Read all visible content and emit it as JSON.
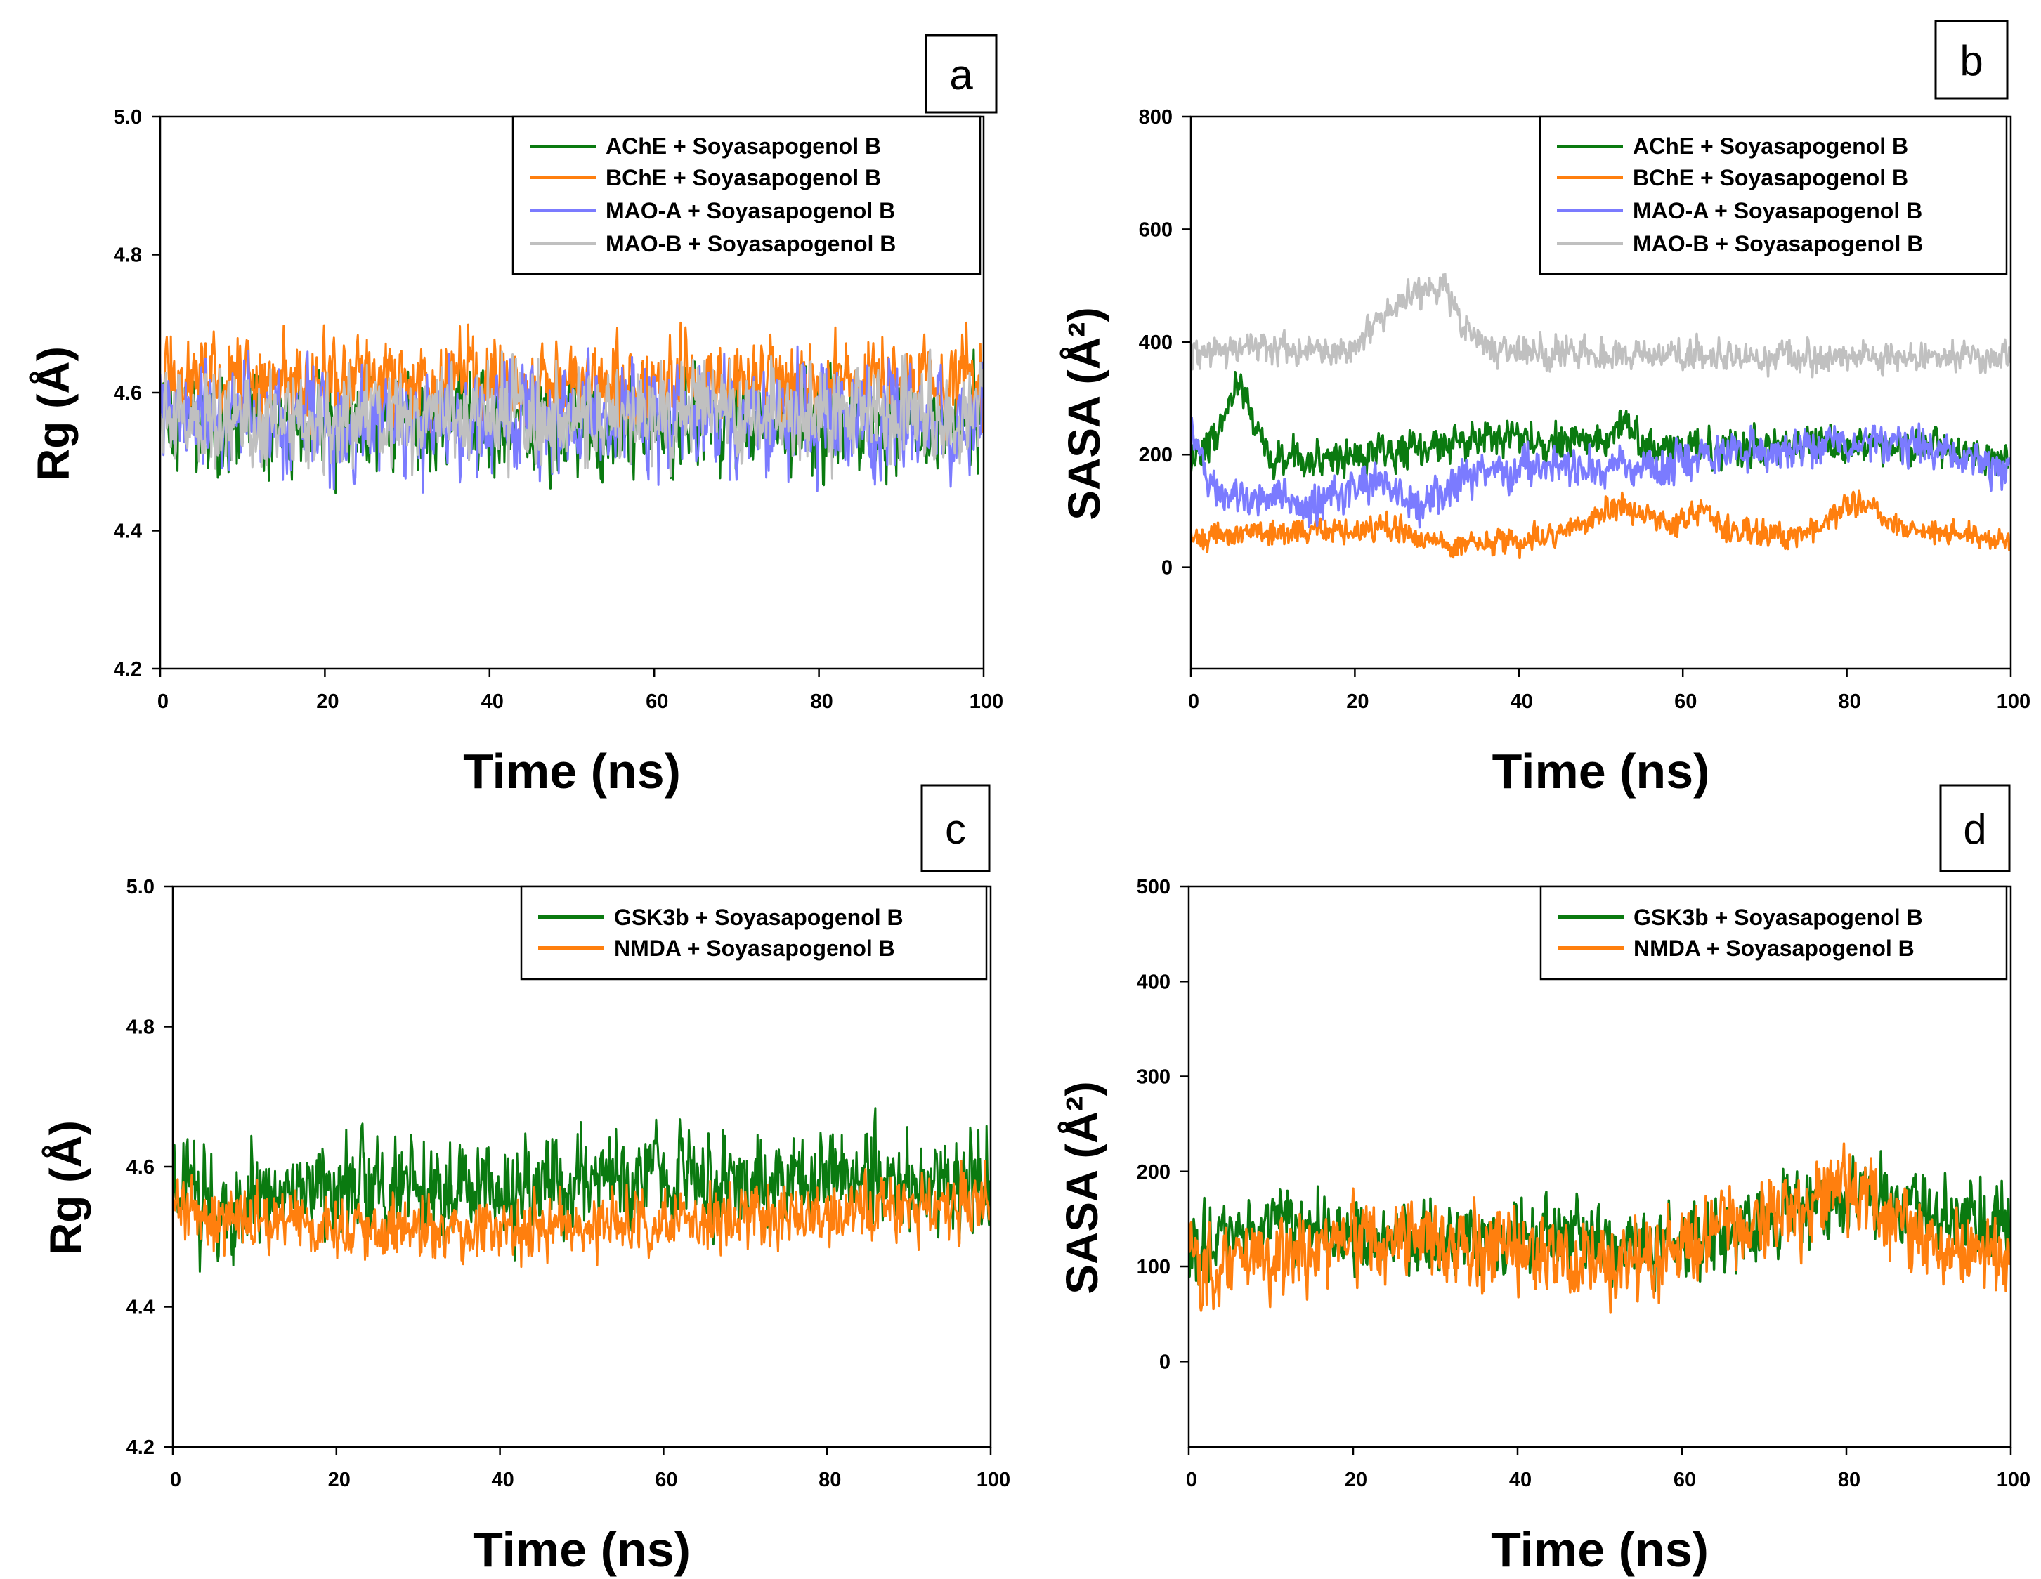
{
  "chart_data": [
    {
      "id": "a",
      "type": "line",
      "panel_label": "a",
      "xlabel": "Time (ns)",
      "ylabel": "Rg (Å)",
      "xlim": [
        0,
        100
      ],
      "ylim": [
        4.2,
        5.0
      ],
      "xticks": [
        0,
        20,
        40,
        60,
        80,
        100
      ],
      "yticks": [
        4.2,
        4.4,
        4.6,
        4.8,
        5.0
      ],
      "ytick_labels": [
        "4.2",
        "4.4",
        "4.6",
        "4.8",
        "5.0"
      ],
      "legend_position": "top-right",
      "series": [
        {
          "name": "AChE + Soyasapogenol B",
          "color": "#0a7a10",
          "mean": 4.555,
          "noise": 0.09,
          "trend": [
            [
              0,
              4.555
            ],
            [
              100,
              4.555
            ]
          ]
        },
        {
          "name": "BChE + Soyasapogenol B",
          "color": "#ff7f0e",
          "mean": 4.615,
          "noise": 0.08,
          "trend": [
            [
              0,
              4.62
            ],
            [
              100,
              4.615
            ]
          ]
        },
        {
          "name": "MAO-A + Soyasapogenol B",
          "color": "#7b7bff",
          "mean": 4.56,
          "noise": 0.1,
          "trend": [
            [
              0,
              4.56
            ],
            [
              100,
              4.56
            ]
          ]
        },
        {
          "name": "MAO-B + Soyasapogenol B",
          "color": "#c0c0c0",
          "mean": 4.565,
          "noise": 0.09,
          "trend": [
            [
              0,
              4.56
            ],
            [
              100,
              4.57
            ]
          ]
        }
      ]
    },
    {
      "id": "b",
      "type": "line",
      "panel_label": "b",
      "xlabel": "Time (ns)",
      "ylabel": "SASA (Å²)",
      "xlim": [
        0,
        100
      ],
      "ylim": [
        -180,
        800
      ],
      "xticks": [
        0,
        20,
        40,
        60,
        80,
        100
      ],
      "yticks": [
        0,
        200,
        400,
        600,
        800
      ],
      "ytick_labels": [
        "0",
        "200",
        "400",
        "600",
        "800"
      ],
      "legend_position": "top-right",
      "series": [
        {
          "name": "AChE + Soyasapogenol B",
          "color": "#0a7a10",
          "mean": 210,
          "noise": 40,
          "trend": [
            [
              0,
              190
            ],
            [
              3,
              230
            ],
            [
              6,
              330
            ],
            [
              8,
              250
            ],
            [
              10,
              190
            ],
            [
              20,
              200
            ],
            [
              30,
              220
            ],
            [
              40,
              230
            ],
            [
              50,
              220
            ],
            [
              53,
              260
            ],
            [
              55,
              215
            ],
            [
              70,
              210
            ],
            [
              80,
              220
            ],
            [
              90,
              210
            ],
            [
              100,
              190
            ]
          ]
        },
        {
          "name": "BChE + Soyasapogenol B",
          "color": "#ff7f0e",
          "mean": 60,
          "noise": 30,
          "trend": [
            [
              0,
              55
            ],
            [
              20,
              65
            ],
            [
              25,
              75
            ],
            [
              30,
              40
            ],
            [
              40,
              45
            ],
            [
              48,
              75
            ],
            [
              52,
              115
            ],
            [
              56,
              90
            ],
            [
              60,
              75
            ],
            [
              62,
              110
            ],
            [
              65,
              65
            ],
            [
              75,
              60
            ],
            [
              82,
              120
            ],
            [
              85,
              70
            ],
            [
              100,
              45
            ]
          ]
        },
        {
          "name": "MAO-A + Soyasapogenol B",
          "color": "#7b7bff",
          "mean": 160,
          "noise": 45,
          "trend": [
            [
              0,
              260
            ],
            [
              2,
              160
            ],
            [
              5,
              130
            ],
            [
              10,
              125
            ],
            [
              15,
              110
            ],
            [
              22,
              150
            ],
            [
              28,
              110
            ],
            [
              35,
              170
            ],
            [
              45,
              180
            ],
            [
              55,
              170
            ],
            [
              65,
              200
            ],
            [
              75,
              210
            ],
            [
              85,
              230
            ],
            [
              92,
              200
            ],
            [
              100,
              170
            ]
          ]
        },
        {
          "name": "MAO-B + Soyasapogenol B",
          "color": "#c0c0c0",
          "mean": 380,
          "noise": 35,
          "trend": [
            [
              0,
              385
            ],
            [
              20,
              390
            ],
            [
              23,
              440
            ],
            [
              27,
              490
            ],
            [
              31,
              500
            ],
            [
              33,
              430
            ],
            [
              36,
              385
            ],
            [
              60,
              375
            ],
            [
              80,
              375
            ],
            [
              100,
              375
            ]
          ]
        }
      ]
    },
    {
      "id": "c",
      "type": "line",
      "panel_label": "c",
      "xlabel": "Time (ns)",
      "ylabel": "Rg (Å)",
      "xlim": [
        0,
        100
      ],
      "ylim": [
        4.2,
        5.0
      ],
      "xticks": [
        0,
        20,
        40,
        60,
        80,
        100
      ],
      "yticks": [
        4.2,
        4.4,
        4.6,
        4.8,
        5.0
      ],
      "ytick_labels": [
        "4.2",
        "4.4",
        "4.6",
        "4.8",
        "5.0"
      ],
      "legend_position": "top-right",
      "series": [
        {
          "name": "GSK3b + Soyasapogenol B",
          "color": "#0a7a10",
          "mean": 4.57,
          "noise": 0.09,
          "trend": [
            [
              0,
              4.58
            ],
            [
              5,
              4.52
            ],
            [
              10,
              4.57
            ],
            [
              40,
              4.57
            ],
            [
              60,
              4.58
            ],
            [
              100,
              4.58
            ]
          ]
        },
        {
          "name": "NMDA + Soyasapogenol B",
          "color": "#ff7f0e",
          "mean": 4.525,
          "noise": 0.06,
          "trend": [
            [
              0,
              4.56
            ],
            [
              5,
              4.52
            ],
            [
              40,
              4.51
            ],
            [
              60,
              4.52
            ],
            [
              100,
              4.55
            ]
          ]
        }
      ]
    },
    {
      "id": "d",
      "type": "line",
      "panel_label": "d",
      "xlabel": "Time (ns)",
      "ylabel": "SASA (Å²)",
      "xlim": [
        0,
        100
      ],
      "ylim": [
        -90,
        500
      ],
      "xticks": [
        0,
        20,
        40,
        60,
        80,
        100
      ],
      "yticks": [
        0,
        100,
        200,
        300,
        400,
        500
      ],
      "ytick_labels": [
        "0",
        "100",
        "200",
        "300",
        "400",
        "500"
      ],
      "legend_position": "top-right",
      "series": [
        {
          "name": "GSK3b + Soyasapogenol B",
          "color": "#0a7a10",
          "mean": 130,
          "noise": 50,
          "trend": [
            [
              0,
              110
            ],
            [
              10,
              150
            ],
            [
              20,
              130
            ],
            [
              40,
              130
            ],
            [
              55,
              120
            ],
            [
              65,
              135
            ],
            [
              75,
              160
            ],
            [
              80,
              185
            ],
            [
              85,
              170
            ],
            [
              95,
              150
            ],
            [
              100,
              145
            ]
          ]
        },
        {
          "name": "NMDA + Soyasapogenol B",
          "color": "#ff7f0e",
          "mean": 120,
          "noise": 55,
          "trend": [
            [
              0,
              115
            ],
            [
              5,
              100
            ],
            [
              15,
              120
            ],
            [
              25,
              130
            ],
            [
              40,
              115
            ],
            [
              55,
              105
            ],
            [
              65,
              140
            ],
            [
              75,
              165
            ],
            [
              80,
              190
            ],
            [
              85,
              150
            ],
            [
              90,
              120
            ],
            [
              100,
              110
            ]
          ]
        }
      ]
    }
  ]
}
